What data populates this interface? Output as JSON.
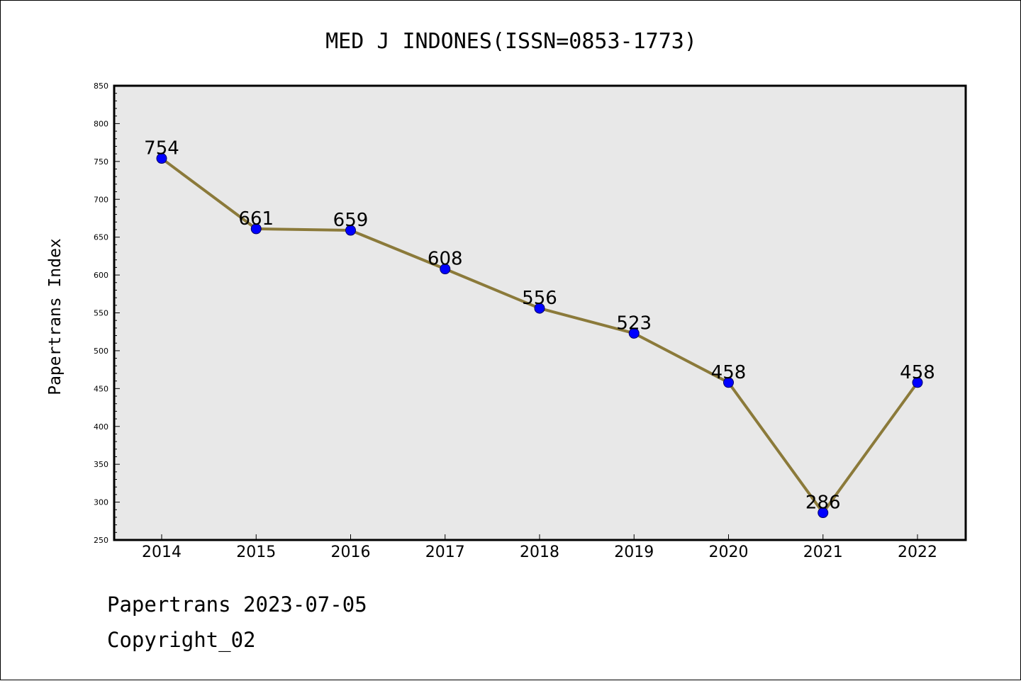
{
  "chart_data": {
    "type": "line",
    "title": "MED J INDONES(ISSN=0853-1773)",
    "xlabel": "",
    "ylabel": "Papertrans Index",
    "categories": [
      "2014",
      "2015",
      "2016",
      "2017",
      "2018",
      "2019",
      "2020",
      "2021",
      "2022"
    ],
    "series": [
      {
        "values": [
          754,
          661,
          659,
          608,
          556,
          523,
          458,
          286,
          458
        ]
      }
    ],
    "data_labels": [
      "754",
      "661",
      "659",
      "608",
      "556",
      "523",
      "458",
      "286",
      "458"
    ],
    "ylim": [
      250,
      850
    ],
    "y_ticks": [
      "250",
      "300",
      "350",
      "400",
      "450",
      "500",
      "550",
      "600",
      "650",
      "700",
      "750",
      "800",
      "850"
    ],
    "grid": false,
    "legend": "none",
    "colors": {
      "line": "#8b7a3a",
      "marker": "#0000ff",
      "marker_edge": "#000066",
      "plot_background": "#e8e8e8"
    }
  },
  "footer": {
    "source_line": "Papertrans 2023-07-05",
    "copyright_line": "Copyright_02"
  }
}
